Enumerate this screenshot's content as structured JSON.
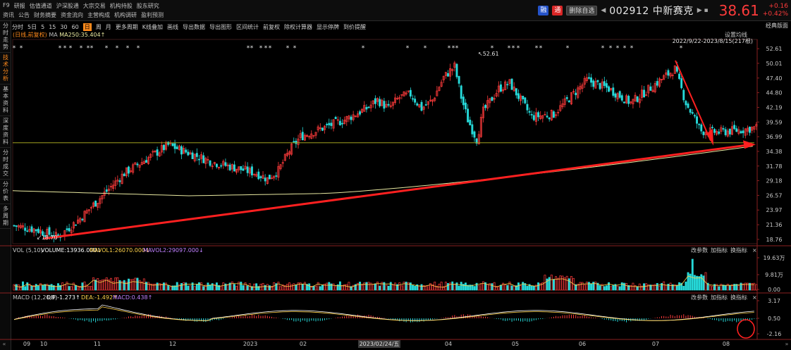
{
  "topnav": {
    "row1": [
      "F9",
      "研报",
      "估值通道",
      "沪深股通",
      "大宗交易",
      "机构持股",
      "股东研究"
    ],
    "row2": [
      "资讯",
      "公告",
      "财务摘要",
      "资金流向",
      "主营构成",
      "机构调研",
      "盈利预测"
    ]
  },
  "stock": {
    "badge_rong": "融",
    "badge_tong": "通",
    "remove_button": "删除自选",
    "code_name": "002912 中新赛克",
    "price": "38.61",
    "change": "+0.16",
    "change_pct": "+0.42%"
  },
  "sidebar": [
    "分时走势",
    "技术分析",
    "基本资料",
    "深度资料",
    "分时成交",
    "分价表",
    "多周期"
  ],
  "toolbar": {
    "items": [
      "分时",
      "5日",
      "5",
      "15",
      "30",
      "60",
      "日",
      "周",
      "月",
      "更多周期",
      "K线叠加",
      "画线",
      "导出数据",
      "导出图形",
      "区间统计",
      "前复权",
      "除权计算器",
      "显示停牌",
      "到价提醒"
    ],
    "active": "日",
    "right_label": "经典版面"
  },
  "ma_legend": {
    "label": "(日线,前复权)",
    "ma": "MA",
    "ma250": "MA250:35.404↑"
  },
  "main_panel": {
    "settings": "设置均线",
    "date_range": "2022/9/22-2023/8/15(217根)",
    "high_label": "52.61",
    "low_label": "18.70",
    "y_ticks": [
      "52.61",
      "50.01",
      "47.40",
      "44.80",
      "42.19",
      "39.59",
      "36.99",
      "34.38",
      "31.78",
      "29.18",
      "26.57",
      "23.97",
      "21.36",
      "18.76"
    ]
  },
  "volume_panel": {
    "legend": {
      "vol": "VOL (5,10)",
      "volume": "VOLUME:13936.000↓",
      "mavol1": "MAVOL1:26070.000↓",
      "mavol2": "MAVOL2:29097.000↓"
    },
    "y_ticks": [
      "19.63万",
      "9.81万",
      "0.00"
    ],
    "buttons": [
      "改参数",
      "加指标",
      "换指标"
    ]
  },
  "macd_panel": {
    "legend": {
      "macd": "MACD (12,26,9)",
      "dif": "DIF:-1.273↑",
      "dea": "DEA:-1.492↑",
      "macd_val": "MACD:0.438↑"
    },
    "y_ticks": [
      "3.17",
      "0.50",
      "-2.16"
    ],
    "buttons": [
      "改参数",
      "加指标",
      "换指标"
    ]
  },
  "x_axis": {
    "ticks": [
      "09",
      "10",
      "11",
      "12",
      "2023",
      "02",
      "2023/02/24/五",
      "04",
      "05",
      "06",
      "07",
      "08"
    ]
  },
  "colors": {
    "up": "#ff3b3b",
    "down": "#26d9d9",
    "ma250": "#e8e8a0",
    "ref_line": "#a0a020",
    "arrow": "#ff2020",
    "dif": "#ffffff",
    "dea": "#ffd24a",
    "mavol2": "#c080ff"
  },
  "chart_data": {
    "type": "candlestick",
    "ma250_last": 35.404,
    "high": 52.61,
    "low": 18.7,
    "last_close": 38.61,
    "close_path": [
      [
        0,
        21.2
      ],
      [
        10,
        20.5
      ],
      [
        20,
        19.2
      ],
      [
        30,
        22.5
      ],
      [
        40,
        26.5
      ],
      [
        50,
        30.5
      ],
      [
        60,
        33.0
      ],
      [
        70,
        35.5
      ],
      [
        80,
        34.0
      ],
      [
        90,
        32.5
      ],
      [
        100,
        31.5
      ],
      [
        110,
        30.5
      ],
      [
        115,
        29.5
      ],
      [
        120,
        31.0
      ],
      [
        125,
        34.5
      ],
      [
        130,
        37.0
      ],
      [
        140,
        38.5
      ],
      [
        150,
        40.0
      ],
      [
        160,
        42.0
      ],
      [
        165,
        43.5
      ],
      [
        170,
        42.0
      ],
      [
        175,
        44.0
      ],
      [
        180,
        44.5
      ],
      [
        185,
        42.0
      ],
      [
        190,
        43.5
      ],
      [
        195,
        47.5
      ],
      [
        200,
        49.5
      ],
      [
        203,
        44.0
      ],
      [
        206,
        40.0
      ],
      [
        210,
        36.5
      ],
      [
        213,
        41.5
      ],
      [
        220,
        45.5
      ],
      [
        225,
        46.5
      ],
      [
        235,
        40.5
      ],
      [
        245,
        41.0
      ],
      [
        255,
        45.0
      ],
      [
        260,
        47.0
      ],
      [
        270,
        45.5
      ],
      [
        280,
        43.0
      ],
      [
        290,
        46.0
      ],
      [
        300,
        49.0
      ],
      [
        305,
        43.0
      ],
      [
        312,
        38.0
      ],
      [
        320,
        37.8
      ],
      [
        330,
        38.2
      ],
      [
        337,
        38.61
      ]
    ]
  }
}
